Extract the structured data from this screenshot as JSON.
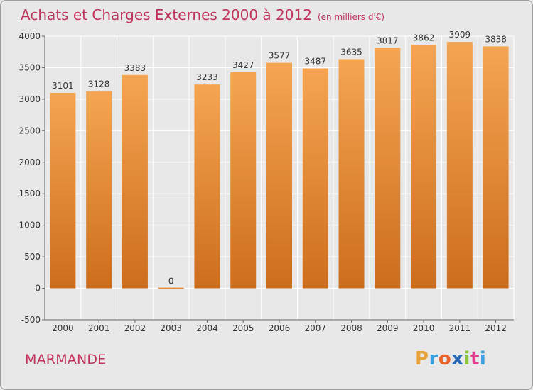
{
  "header": {
    "title": "Achats et Charges Externes 2000 à 2012",
    "unit": "(en milliers d'€)"
  },
  "footer": {
    "commune": "MARMANDE",
    "logo": {
      "letters": [
        "P",
        "r",
        "o",
        "x",
        "i",
        "t",
        "i"
      ],
      "colors": [
        "#e8a23a",
        "#3aa0dc",
        "#e8632a",
        "#2a6ab4",
        "#8cc43c",
        "#e83a8c",
        "#3aa0dc"
      ]
    }
  },
  "colors": {
    "bar_top": "#f5a552",
    "bar_bottom": "#cc6d1c",
    "title": "#c0345c",
    "background": "#e8e8e8",
    "grid": "#ffffff"
  },
  "chart_data": {
    "type": "bar",
    "categories": [
      "2000",
      "2001",
      "2002",
      "2003",
      "2004",
      "2005",
      "2006",
      "2007",
      "2008",
      "2009",
      "2010",
      "2011",
      "2012"
    ],
    "values": [
      3101,
      3128,
      3383,
      0,
      3233,
      3427,
      3577,
      3487,
      3635,
      3817,
      3862,
      3909,
      3838
    ],
    "title": "Achats et Charges Externes 2000 à 2012",
    "xlabel": "",
    "ylabel": "",
    "ylim": [
      -500,
      4000
    ],
    "yticks": [
      -500,
      0,
      500,
      1000,
      1500,
      2000,
      2500,
      3000,
      3500,
      4000
    ],
    "grid": true,
    "legend": "none"
  }
}
